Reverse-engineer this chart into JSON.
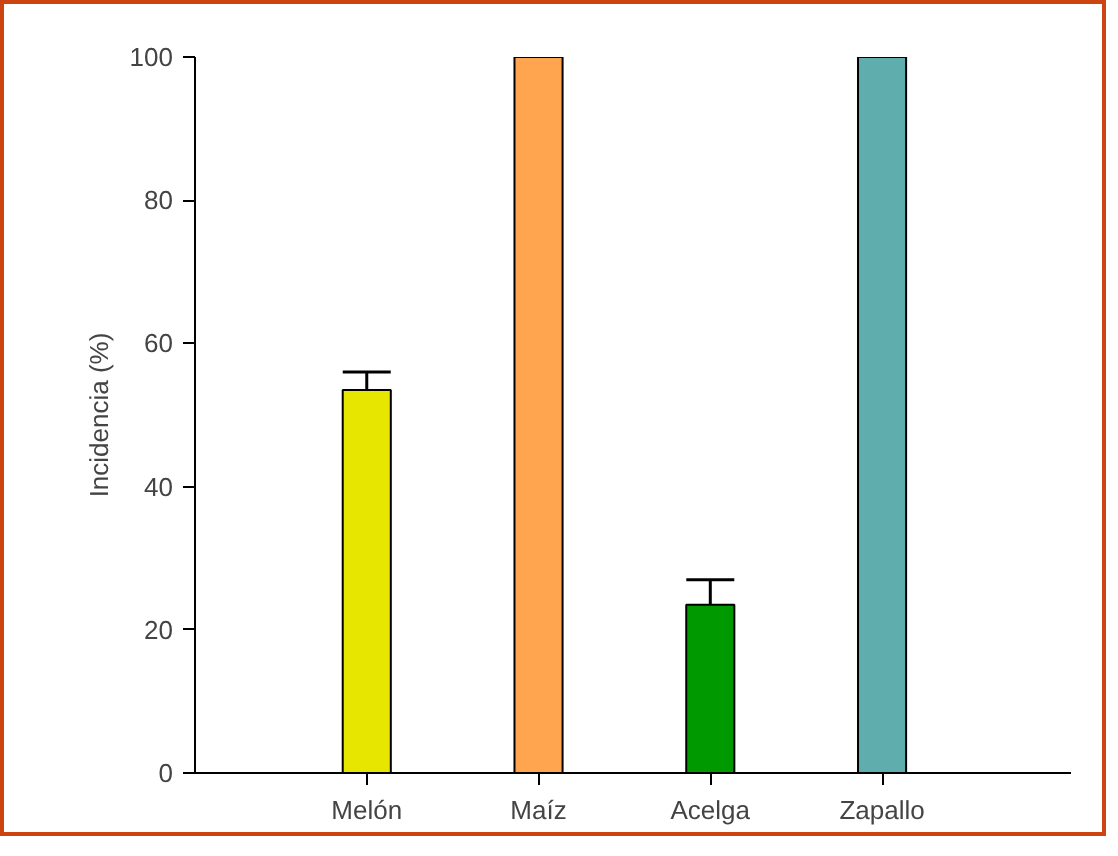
{
  "chart_data": {
    "type": "bar",
    "ylabel": "Incidencia (%)",
    "categories": [
      "Melón",
      "Maíz",
      "Acelga",
      "Zapallo"
    ],
    "values": [
      53.5,
      100,
      23.5,
      100
    ],
    "colors": [
      "#e6e600",
      "#ffa54f",
      "#009900",
      "#5fadad"
    ],
    "errors": [
      [
        53.5,
        56
      ],
      null,
      [
        23.5,
        27
      ],
      null
    ],
    "ylim": [
      0,
      100
    ],
    "yticks": [
      0,
      20,
      40,
      60,
      80,
      100
    ],
    "grid": false
  }
}
